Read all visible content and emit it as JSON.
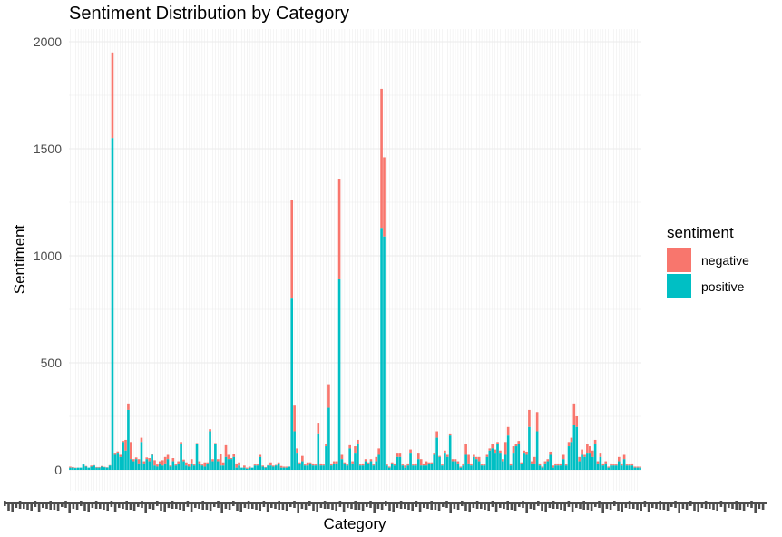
{
  "chart_data": {
    "type": "bar",
    "stacked": true,
    "title": "Sentiment Distribution by Category",
    "xlabel": "Category",
    "ylabel": "Sentiment",
    "ylim": [
      0,
      2000
    ],
    "y_ticks": [
      0,
      500,
      1000,
      1500,
      2000
    ],
    "grid": true,
    "legend_position": "right",
    "legend_title": "sentiment",
    "series": [
      {
        "name": "negative",
        "color": "#F8766D",
        "values": [
          5,
          3,
          2,
          0,
          0,
          2,
          3,
          0,
          5,
          2,
          3,
          3,
          3,
          2,
          2,
          2,
          400,
          10,
          6,
          10,
          5,
          50,
          30,
          80,
          10,
          8,
          20,
          20,
          10,
          8,
          15,
          5,
          25,
          10,
          10,
          25,
          30,
          20,
          5,
          15,
          5,
          10,
          10,
          8,
          15,
          10,
          20,
          5,
          5,
          10,
          5,
          20,
          5,
          10,
          10,
          5,
          10,
          55,
          15,
          55,
          20,
          5,
          15,
          20,
          15,
          0,
          10,
          5,
          5,
          0,
          5,
          5,
          10,
          5,
          3,
          2,
          15,
          5,
          3,
          5,
          8,
          5,
          5,
          0,
          460,
          120,
          20,
          5,
          25,
          5,
          15,
          5,
          10,
          5,
          50,
          10,
          5,
          10,
          110,
          10,
          10,
          10,
          470,
          20,
          5,
          5,
          15,
          10,
          30,
          20,
          5,
          10,
          10,
          5,
          10,
          5,
          20,
          30,
          650,
          370,
          5,
          5,
          5,
          10,
          20,
          20,
          5,
          10,
          10,
          15,
          5,
          10,
          30,
          30,
          10,
          20,
          5,
          5,
          10,
          30,
          5,
          5,
          10,
          10,
          10,
          10,
          10,
          10,
          5,
          10,
          50,
          40,
          10,
          10,
          10,
          20,
          5,
          5,
          10,
          10,
          20,
          15,
          10,
          10,
          10,
          60,
          40,
          10,
          30,
          10,
          15,
          5,
          10,
          15,
          80,
          10,
          30,
          90,
          10,
          5,
          10,
          10,
          15,
          10,
          10,
          10,
          10,
          20,
          5,
          20,
          20,
          100,
          50,
          20,
          25,
          10,
          40,
          30,
          30,
          20,
          10,
          20,
          10,
          10,
          5,
          10,
          5,
          5,
          20,
          10,
          20,
          5,
          5,
          10,
          5,
          5,
          5
        ]
      },
      {
        "name": "positive",
        "color": "#00BFC4",
        "values": [
          10,
          10,
          8,
          10,
          10,
          25,
          15,
          10,
          15,
          20,
          10,
          10,
          15,
          12,
          10,
          20,
          1550,
          70,
          80,
          60,
          130,
          90,
          280,
          50,
          40,
          50,
          30,
          130,
          30,
          50,
          40,
          70,
          20,
          15,
          30,
          20,
          30,
          50,
          15,
          40,
          20,
          30,
          120,
          40,
          20,
          15,
          30,
          20,
          120,
          30,
          20,
          15,
          30,
          180,
          40,
          120,
          40,
          20,
          20,
          60,
          50,
          50,
          60,
          10,
          20,
          10,
          10,
          5,
          10,
          10,
          20,
          20,
          60,
          15,
          10,
          20,
          20,
          15,
          20,
          30,
          10,
          10,
          10,
          15,
          800,
          180,
          80,
          30,
          40,
          20,
          20,
          30,
          20,
          20,
          170,
          20,
          20,
          110,
          290,
          20,
          30,
          30,
          890,
          50,
          30,
          20,
          100,
          30,
          80,
          120,
          20,
          20,
          40,
          30,
          40,
          20,
          40,
          70,
          1130,
          1090,
          20,
          10,
          30,
          20,
          60,
          60,
          20,
          10,
          20,
          80,
          20,
          20,
          50,
          20,
          20,
          20,
          30,
          30,
          70,
          150,
          60,
          20,
          80,
          60,
          160,
          40,
          40,
          30,
          10,
          20,
          70,
          30,
          20,
          60,
          50,
          40,
          20,
          20,
          60,
          90,
          100,
          80,
          120,
          80,
          40,
          70,
          160,
          20,
          80,
          110,
          120,
          30,
          80,
          70,
          200,
          30,
          30,
          180,
          20,
          10,
          30,
          40,
          70,
          10,
          20,
          20,
          20,
          50,
          20,
          110,
          130,
          210,
          200,
          40,
          70,
          60,
          80,
          80,
          60,
          120,
          30,
          60,
          20,
          30,
          10,
          20,
          20,
          20,
          40,
          20,
          50,
          20,
          20,
          20,
          10,
          10,
          10
        ]
      }
    ]
  }
}
